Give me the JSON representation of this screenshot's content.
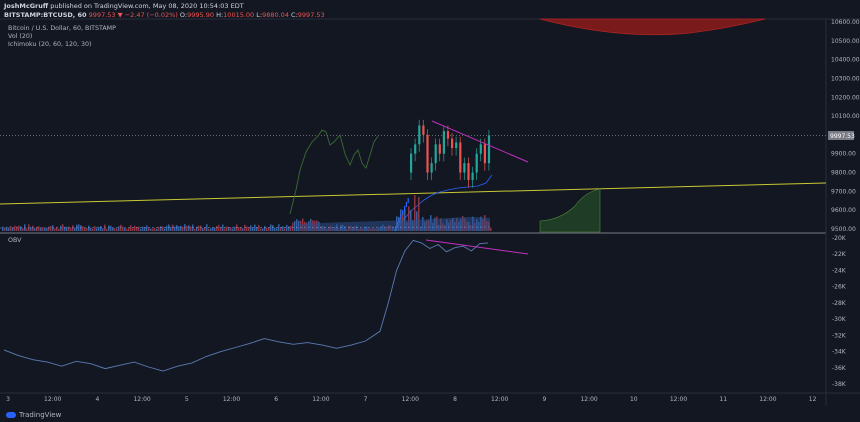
{
  "header": {
    "author": "JoshMcGruff",
    "published": "published on TradingView.com, May 08, 2020 10:54:03 EDT",
    "symbol": "BITSTAMP:BTCUSD, 60",
    "last": "9997.53",
    "change": "▼ −2.47 (−0.02%)",
    "o_label": "O:",
    "o": "9995.90",
    "h_label": "H:",
    "h": "10015.00",
    "l_label": "L:",
    "l": "9880.04",
    "c_label": "C:",
    "c": "9997.53"
  },
  "legend": {
    "title": "Bitcoin / U.S. Dollar, 60, BITSTAMP",
    "vol": "Vol (20)",
    "ichimoku": "Ichimoku (20, 60, 120, 30)",
    "obv": "OBV"
  },
  "price_badge": "9997.53",
  "footer": {
    "brand": "TradingView"
  },
  "colors": {
    "bg": "#131722",
    "up": "#26a69a",
    "down": "#ef5350",
    "trendline": "#c030c0",
    "baseline": "#c8c832",
    "ichimoku_lead": "#4c8a3a",
    "obv_line": "#5b7bb4",
    "volume": "#3a6fb8",
    "cloud_red": "#8b1c1c"
  },
  "chart_data": [
    {
      "type": "line",
      "title": "Bitcoin / U.S. Dollar, 60, BITSTAMP",
      "y_ticks": [
        "10600.00",
        "10500.00",
        "10400.00",
        "10300.00",
        "10200.00",
        "10100.00",
        "9900.00",
        "9800.00",
        "9700.00",
        "9600.00",
        "9500.00"
      ],
      "ylim": [
        9480,
        10610
      ],
      "x_ticks": [
        "3",
        "12:00",
        "4",
        "12:00",
        "5",
        "12:00",
        "6",
        "12:00",
        "7",
        "12:00",
        "8",
        "12:00",
        "9",
        "12:00",
        "10",
        "12:00",
        "11",
        "12:00",
        "12"
      ],
      "series": [
        {
          "values": [
            9620,
            9630,
            9640,
            9650,
            9660,
            9670,
            9680,
            9690,
            9700,
            9710,
            9720,
            9730,
            9740,
            9750,
            9760
          ]
        },
        {
          "values": [
            9900,
            9950,
            10050,
            10000,
            9800,
            9850,
            9950,
            9900,
            10020,
            9980,
            9930,
            9960,
            9800,
            9850,
            9760,
            9800,
            9900,
            9950,
            9850,
            9997
          ]
        },
        {
          "values": [
            10080,
            10030,
            9970,
            9920,
            9870
          ]
        }
      ],
      "current_price": 9997.53
    },
    {
      "type": "line",
      "title": "OBV",
      "y_ticks": [
        "-20K",
        "-22K",
        "-24K",
        "-26K",
        "-28K",
        "-30K",
        "-32K",
        "-34K",
        "-36K",
        "-38K"
      ],
      "ylim": [
        -38500,
        -19500
      ],
      "series": [
        {
          "values": [
            -33800,
            -34500,
            -35000,
            -35300,
            -35800,
            -35200,
            -35500,
            -36100,
            -35700,
            -35300,
            -35900,
            -36400,
            -35800,
            -35400,
            -34600,
            -34000,
            -33500,
            -33000,
            -32400,
            -32800,
            -33100,
            -32900,
            -33200,
            -33600,
            -33200,
            -32700,
            -31500,
            -28000,
            -24000,
            -21600,
            -20300,
            -20600,
            -21300,
            -20800,
            -21700,
            -21200,
            -21000,
            -21600,
            -20700,
            -20600
          ]
        },
        {
          "values": [
            -20100,
            -20800,
            -21300
          ]
        }
      ]
    }
  ]
}
